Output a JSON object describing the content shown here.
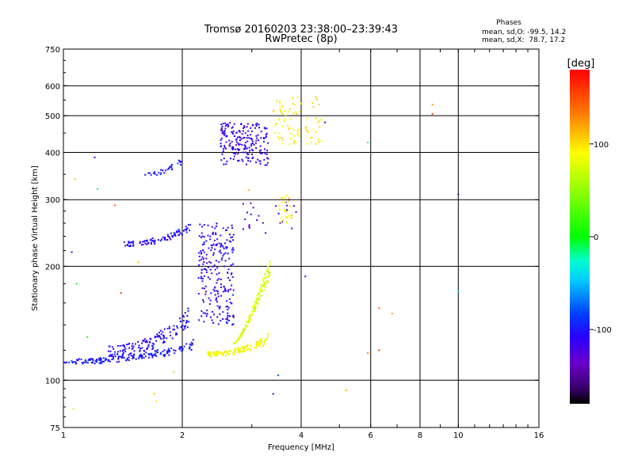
{
  "header": {
    "title": "Tromsø 20160203 23:38:00–23:39:43",
    "subtitle": "RwPretec (8p)"
  },
  "stats": {
    "heading": "Phases",
    "line_o": "mean, sd,O: -99.5, 14.2",
    "line_x": "mean, sd,X:  78.7, 17.2"
  },
  "colorbar": {
    "label": "[deg]",
    "range": [
      -180,
      180
    ],
    "ticks": [
      "100",
      "0",
      "-100"
    ],
    "tick_values": [
      100,
      0,
      -100
    ]
  },
  "chart_data": {
    "type": "scatter",
    "xlabel": "Frequency [MHz]",
    "ylabel": "Stationary phase Virtual Height [km]",
    "xscale": "log",
    "yscale": "log",
    "xlim": [
      1,
      16
    ],
    "ylim": [
      75,
      750
    ],
    "grid": true,
    "x_ticks": [
      1,
      2,
      4,
      6,
      8,
      10,
      16
    ],
    "x_tick_labels": [
      "1",
      "2",
      "4",
      "6",
      "8",
      "10",
      "16"
    ],
    "y_ticks": [
      75,
      100,
      200,
      300,
      400,
      500,
      600,
      750
    ],
    "y_tick_labels": [
      "75",
      "100",
      "200",
      "300",
      "400",
      "500",
      "600",
      "750"
    ],
    "color_variable": "phase [deg]",
    "traces": [
      {
        "f_range": [
          1.0,
          2.15
        ],
        "h_range": [
          110,
          125
        ],
        "phase": -100,
        "count": 170,
        "curve": "rise"
      },
      {
        "f_range": [
          1.3,
          2.1
        ],
        "h_range": [
          115,
          150
        ],
        "phase": -105,
        "count": 150,
        "curve": "rise"
      },
      {
        "f_range": [
          1.4,
          2.1
        ],
        "h_range": [
          225,
          255
        ],
        "phase": -105,
        "count": 90,
        "curve": "rise"
      },
      {
        "f_range": [
          1.6,
          2.0
        ],
        "h_range": [
          345,
          385
        ],
        "phase": -100,
        "count": 30,
        "curve": "rise"
      },
      {
        "f_range": [
          2.2,
          2.7
        ],
        "h_range": [
          140,
          260
        ],
        "phase": -110,
        "count": 230,
        "curve": "cluster"
      },
      {
        "f_range": [
          2.5,
          3.3
        ],
        "h_range": [
          370,
          480
        ],
        "phase": -115,
        "count": 200,
        "curve": "cluster"
      },
      {
        "f_range": [
          2.8,
          3.9
        ],
        "h_range": [
          250,
          300
        ],
        "phase": -125,
        "count": 25,
        "curve": "cluster"
      },
      {
        "f_range": [
          2.3,
          3.3
        ],
        "h_range": [
          115,
          130
        ],
        "phase": 88,
        "count": 120,
        "curve": "rise"
      },
      {
        "f_range": [
          2.7,
          3.35
        ],
        "h_range": [
          125,
          210
        ],
        "phase": 78,
        "count": 160,
        "curve": "steep"
      },
      {
        "f_range": [
          3.4,
          4.5
        ],
        "h_range": [
          420,
          560
        ],
        "phase": 95,
        "count": 80,
        "curve": "cluster"
      },
      {
        "f_range": [
          3.5,
          3.8
        ],
        "h_range": [
          260,
          310
        ],
        "phase": 92,
        "count": 25,
        "curve": "cluster"
      }
    ],
    "scattered_points": [
      {
        "x": 1.05,
        "y": 218,
        "phase": -120
      },
      {
        "x": 1.2,
        "y": 388,
        "phase": -130
      },
      {
        "x": 1.22,
        "y": 320,
        "phase": -20
      },
      {
        "x": 1.08,
        "y": 180,
        "phase": -10
      },
      {
        "x": 1.07,
        "y": 340,
        "phase": 110
      },
      {
        "x": 1.35,
        "y": 290,
        "phase": 150
      },
      {
        "x": 1.4,
        "y": 170,
        "phase": 160
      },
      {
        "x": 1.15,
        "y": 130,
        "phase": 10
      },
      {
        "x": 1.7,
        "y": 92,
        "phase": 110
      },
      {
        "x": 1.72,
        "y": 88,
        "phase": 100
      },
      {
        "x": 1.06,
        "y": 84,
        "phase": 100
      },
      {
        "x": 1.9,
        "y": 105,
        "phase": 60
      },
      {
        "x": 3.5,
        "y": 103,
        "phase": -80
      },
      {
        "x": 3.4,
        "y": 92,
        "phase": -150
      },
      {
        "x": 5.2,
        "y": 94,
        "phase": 120
      },
      {
        "x": 4.1,
        "y": 188,
        "phase": -120
      },
      {
        "x": 5.9,
        "y": 118,
        "phase": 130
      },
      {
        "x": 6.3,
        "y": 120,
        "phase": 160
      },
      {
        "x": 6.3,
        "y": 155,
        "phase": 140
      },
      {
        "x": 6.8,
        "y": 150,
        "phase": 120
      },
      {
        "x": 5.9,
        "y": 425,
        "phase": -20
      },
      {
        "x": 4.6,
        "y": 480,
        "phase": -150
      },
      {
        "x": 8.6,
        "y": 535,
        "phase": 120
      },
      {
        "x": 8.6,
        "y": 505,
        "phase": 160
      },
      {
        "x": 10.0,
        "y": 310,
        "phase": -150
      },
      {
        "x": 10.0,
        "y": 172,
        "phase": -40
      },
      {
        "x": 2.95,
        "y": 318,
        "phase": 110
      },
      {
        "x": 3.25,
        "y": 245,
        "phase": -120
      },
      {
        "x": 2.25,
        "y": 175,
        "phase": -110
      },
      {
        "x": 1.55,
        "y": 205,
        "phase": 110
      }
    ]
  }
}
